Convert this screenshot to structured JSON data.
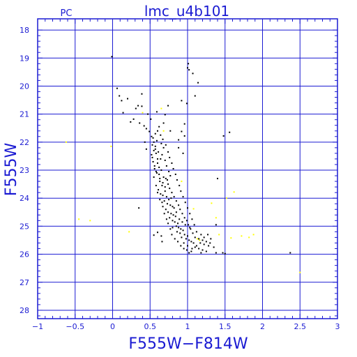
{
  "chart_data": {
    "type": "scatter",
    "title": "lmc_u4b101",
    "subtitle": "PC",
    "xlabel": "F555W−F814W",
    "ylabel": "F555W",
    "xlim": [
      -1,
      3
    ],
    "ylim": [
      28.3,
      17.6
    ],
    "y_inverted": true,
    "grid": true,
    "x_ticks": [
      -1,
      -0.5,
      0,
      0.5,
      1,
      1.5,
      2,
      2.5,
      3
    ],
    "x_tick_labels": [
      "−1",
      "−0.5",
      "0",
      "0.5",
      "1",
      "1.5",
      "2",
      "2.5",
      "3"
    ],
    "y_ticks": [
      18,
      19,
      20,
      21,
      22,
      23,
      24,
      25,
      26,
      27,
      28
    ],
    "y_tick_labels": [
      "18",
      "19",
      "20",
      "21",
      "22",
      "23",
      "24",
      "25",
      "26",
      "27",
      "28"
    ],
    "colors": {
      "frame": "#1a1ad2",
      "grid": "#1a1ad2",
      "text": "#1a1ad2",
      "primary": "#000000",
      "secondary": "#ffff00"
    },
    "series": [
      {
        "color": "#000000",
        "points": [
          [
            -0.01,
            18.95
          ],
          [
            0.06,
            20.08
          ],
          [
            0.09,
            20.35
          ],
          [
            0.12,
            20.52
          ],
          [
            0.14,
            20.95
          ],
          [
            0.2,
            20.45
          ],
          [
            0.31,
            20.8
          ],
          [
            0.34,
            20.7
          ],
          [
            0.39,
            20.28
          ],
          [
            0.39,
            20.72
          ],
          [
            0.28,
            21.18
          ],
          [
            0.24,
            21.28
          ],
          [
            0.36,
            21.32
          ],
          [
            0.42,
            21.42
          ],
          [
            0.47,
            21.0
          ],
          [
            0.51,
            21.18
          ],
          [
            0.59,
            20.92
          ],
          [
            0.62,
            21.45
          ],
          [
            0.7,
            21.02
          ],
          [
            0.74,
            20.7
          ],
          [
            0.43,
            22.0
          ],
          [
            0.45,
            21.52
          ],
          [
            0.49,
            21.62
          ],
          [
            0.52,
            21.8
          ],
          [
            0.68,
            21.32
          ],
          [
            0.77,
            21.6
          ],
          [
            0.96,
            21.35
          ],
          [
            0.92,
            21.62
          ],
          [
            0.96,
            21.78
          ],
          [
            0.88,
            21.92
          ],
          [
            0.99,
            20.62
          ],
          [
            1.0,
            19.35
          ],
          [
            1.02,
            19.42
          ],
          [
            1.01,
            19.2
          ],
          [
            1.07,
            19.55
          ],
          [
            1.14,
            19.88
          ],
          [
            1.1,
            20.35
          ],
          [
            0.92,
            20.52
          ],
          [
            0.35,
            24.35
          ],
          [
            0.45,
            22.25
          ],
          [
            0.88,
            22.2
          ],
          [
            0.94,
            22.4
          ],
          [
            1.56,
            21.65
          ],
          [
            1.48,
            21.78
          ],
          [
            1.4,
            23.3
          ],
          [
            1.38,
            24.95
          ],
          [
            0.6,
            25.22
          ],
          [
            0.55,
            25.32
          ],
          [
            0.65,
            25.35
          ],
          [
            0.66,
            25.55
          ],
          [
            1.38,
            25.95
          ],
          [
            1.47,
            25.95
          ],
          [
            1.5,
            25.98
          ],
          [
            2.37,
            25.95
          ],
          [
            0.55,
            22.3
          ],
          [
            0.53,
            22.55
          ],
          [
            0.54,
            22.7
          ],
          [
            0.56,
            22.85
          ],
          [
            0.53,
            22.1
          ],
          [
            0.57,
            22.25
          ],
          [
            0.55,
            22.0
          ],
          [
            0.58,
            22.4
          ],
          [
            0.6,
            22.6
          ],
          [
            0.52,
            22.45
          ],
          [
            0.56,
            22.95
          ],
          [
            0.59,
            23.1
          ],
          [
            0.62,
            23.15
          ],
          [
            0.65,
            23.0
          ],
          [
            0.68,
            23.25
          ],
          [
            0.71,
            23.3
          ],
          [
            0.63,
            23.4
          ],
          [
            0.66,
            23.55
          ],
          [
            0.7,
            23.6
          ],
          [
            0.74,
            23.5
          ],
          [
            0.61,
            23.7
          ],
          [
            0.64,
            23.85
          ],
          [
            0.67,
            23.9
          ],
          [
            0.72,
            23.95
          ],
          [
            0.75,
            24.05
          ],
          [
            0.69,
            24.1
          ],
          [
            0.73,
            24.2
          ],
          [
            0.77,
            24.25
          ],
          [
            0.8,
            24.3
          ],
          [
            0.66,
            24.15
          ],
          [
            0.71,
            24.4
          ],
          [
            0.74,
            24.5
          ],
          [
            0.78,
            24.55
          ],
          [
            0.81,
            24.6
          ],
          [
            0.84,
            24.65
          ],
          [
            0.76,
            24.7
          ],
          [
            0.8,
            24.8
          ],
          [
            0.83,
            24.85
          ],
          [
            0.87,
            24.9
          ],
          [
            0.72,
            24.75
          ],
          [
            0.85,
            25.0
          ],
          [
            0.88,
            25.05
          ],
          [
            0.91,
            25.1
          ],
          [
            0.94,
            25.15
          ],
          [
            0.8,
            25.05
          ],
          [
            0.86,
            25.2
          ],
          [
            0.9,
            25.25
          ],
          [
            0.96,
            25.3
          ],
          [
            1.0,
            25.35
          ],
          [
            0.92,
            25.4
          ],
          [
            0.98,
            25.45
          ],
          [
            1.02,
            25.5
          ],
          [
            1.05,
            25.55
          ],
          [
            1.08,
            25.6
          ],
          [
            0.95,
            25.6
          ],
          [
            1.0,
            25.7
          ],
          [
            1.1,
            25.75
          ],
          [
            1.15,
            25.8
          ],
          [
            1.2,
            25.85
          ],
          [
            1.05,
            25.9
          ],
          [
            1.1,
            25.4
          ],
          [
            1.15,
            25.45
          ],
          [
            1.2,
            25.5
          ],
          [
            1.25,
            25.55
          ],
          [
            1.12,
            25.2
          ],
          [
            1.18,
            25.3
          ],
          [
            1.22,
            25.65
          ],
          [
            1.28,
            25.7
          ],
          [
            1.3,
            25.6
          ],
          [
            1.35,
            25.75
          ],
          [
            1.02,
            25.95
          ],
          [
            1.18,
            25.95
          ],
          [
            1.25,
            25.9
          ],
          [
            0.97,
            24.95
          ],
          [
            1.03,
            25.05
          ],
          [
            0.93,
            24.85
          ],
          [
            0.89,
            24.75
          ],
          [
            0.85,
            24.5
          ],
          [
            0.82,
            24.35
          ],
          [
            0.78,
            24.0
          ],
          [
            0.6,
            22.75
          ],
          [
            0.62,
            22.9
          ],
          [
            0.58,
            23.05
          ],
          [
            0.63,
            23.3
          ],
          [
            0.67,
            23.45
          ],
          [
            0.7,
            23.75
          ],
          [
            0.64,
            22.6
          ],
          [
            0.61,
            22.35
          ],
          [
            0.57,
            22.15
          ],
          [
            0.59,
            21.95
          ],
          [
            0.65,
            22.05
          ],
          [
            0.68,
            22.2
          ],
          [
            0.66,
            22.45
          ],
          [
            0.7,
            22.65
          ],
          [
            0.72,
            22.85
          ],
          [
            0.75,
            23.05
          ],
          [
            0.77,
            23.2
          ],
          [
            0.73,
            23.35
          ],
          [
            0.76,
            23.65
          ],
          [
            0.79,
            23.8
          ],
          [
            0.82,
            23.95
          ],
          [
            0.85,
            24.1
          ],
          [
            0.88,
            24.25
          ],
          [
            0.9,
            24.4
          ],
          [
            0.93,
            24.55
          ],
          [
            0.96,
            24.7
          ],
          [
            0.99,
            24.8
          ],
          [
            1.01,
            24.95
          ],
          [
            1.04,
            25.1
          ],
          [
            1.07,
            25.25
          ],
          [
            0.69,
            24.55
          ],
          [
            0.67,
            24.3
          ],
          [
            0.63,
            24.05
          ],
          [
            0.6,
            23.8
          ],
          [
            0.58,
            23.55
          ],
          [
            0.55,
            23.25
          ],
          [
            0.74,
            24.9
          ],
          [
            0.77,
            25.1
          ],
          [
            0.79,
            25.3
          ],
          [
            0.83,
            25.45
          ],
          [
            0.87,
            25.55
          ],
          [
            0.91,
            25.7
          ],
          [
            0.95,
            25.8
          ],
          [
            0.99,
            25.85
          ],
          [
            1.06,
            25.8
          ],
          [
            1.12,
            25.7
          ],
          [
            1.17,
            25.6
          ],
          [
            1.22,
            25.4
          ],
          [
            1.27,
            25.3
          ],
          [
            1.31,
            25.45
          ],
          [
            0.54,
            21.85
          ],
          [
            0.57,
            21.7
          ],
          [
            0.6,
            21.6
          ],
          [
            0.64,
            21.75
          ],
          [
            0.67,
            21.9
          ],
          [
            0.71,
            22.1
          ],
          [
            0.74,
            22.35
          ],
          [
            0.76,
            22.55
          ],
          [
            0.79,
            22.75
          ],
          [
            0.81,
            22.95
          ],
          [
            0.84,
            23.15
          ],
          [
            0.86,
            23.35
          ],
          [
            0.89,
            23.55
          ],
          [
            0.91,
            23.75
          ],
          [
            0.94,
            23.95
          ],
          [
            0.97,
            24.15
          ],
          [
            1.0,
            24.35
          ],
          [
            1.03,
            24.55
          ],
          [
            1.06,
            24.75
          ],
          [
            1.09,
            24.95
          ]
        ]
      },
      {
        "color": "#ffff00",
        "points": [
          [
            -0.62,
            22.0
          ],
          [
            -0.45,
            24.75
          ],
          [
            -0.3,
            24.8
          ],
          [
            -0.02,
            22.15
          ],
          [
            0.22,
            25.2
          ],
          [
            0.4,
            20.95
          ],
          [
            0.65,
            20.8
          ],
          [
            0.68,
            21.6
          ],
          [
            0.92,
            23.4
          ],
          [
            1.08,
            24.38
          ],
          [
            1.13,
            25.45
          ],
          [
            1.16,
            25.5
          ],
          [
            1.32,
            24.18
          ],
          [
            1.38,
            24.7
          ],
          [
            1.42,
            25.3
          ],
          [
            1.52,
            24.0
          ],
          [
            1.58,
            25.42
          ],
          [
            1.62,
            23.78
          ],
          [
            1.72,
            25.35
          ],
          [
            1.82,
            25.4
          ],
          [
            1.88,
            25.3
          ],
          [
            2.5,
            26.65
          ]
        ]
      }
    ]
  }
}
